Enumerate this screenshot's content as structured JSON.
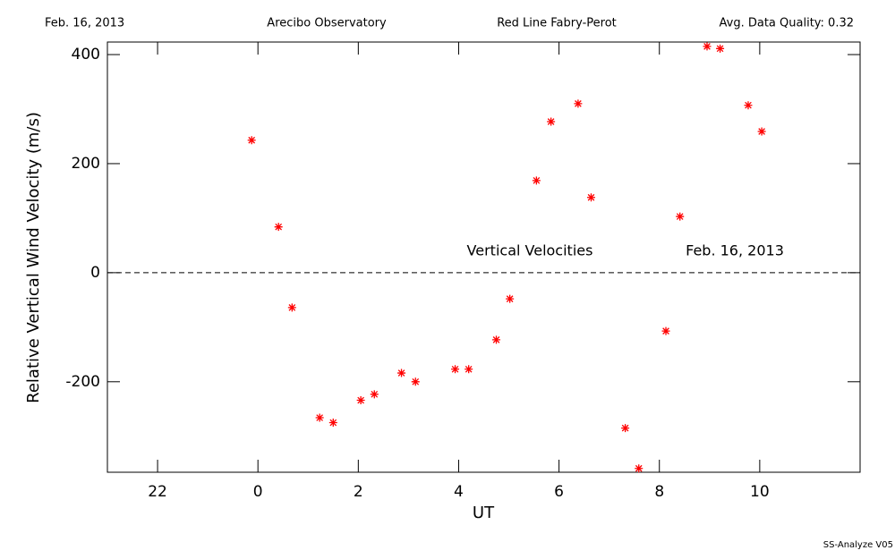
{
  "chart_data": {
    "type": "scatter",
    "header": [
      "Feb. 16, 2013",
      "Arecibo Observatory",
      "Red Line Fabry-Perot",
      "Avg. Data Quality: 0.32"
    ],
    "annotations": [
      "Vertical Velocities",
      "Feb. 16, 2013"
    ],
    "footer": "SS-Analyze V05",
    "x_label": "UT",
    "y_label": "Relative Vertical Wind Velocity (m/s)",
    "xlim": [
      -3,
      12
    ],
    "ylim": [
      -366,
      423
    ],
    "xticks": [
      {
        "value": -2,
        "label": "22"
      },
      0,
      2,
      4,
      6,
      8,
      10
    ],
    "yticks": [
      -200,
      0,
      200,
      400
    ],
    "reference_line": 0,
    "color": "#ff0000",
    "x": [
      -0.125,
      0.41,
      0.68,
      1.23,
      1.5,
      2.05,
      2.32,
      2.86,
      3.14,
      3.93,
      4.2,
      4.75,
      5.02,
      5.55,
      5.84,
      6.38,
      6.64,
      7.32,
      7.59,
      8.13,
      8.41,
      8.95,
      9.21,
      9.77,
      10.04
    ],
    "values": [
      243,
      84,
      -64,
      -266,
      -275,
      -234,
      -223,
      -184,
      -200,
      -177,
      -177,
      -123,
      -48,
      169,
      277,
      310,
      138,
      -285,
      -359,
      -107,
      103,
      415,
      411,
      307,
      259
    ]
  }
}
